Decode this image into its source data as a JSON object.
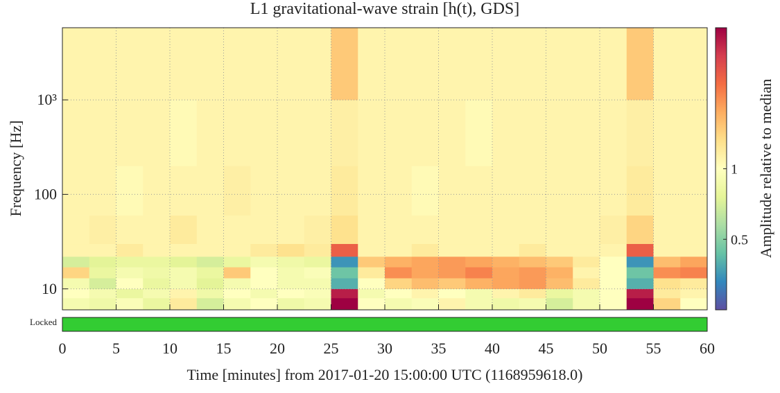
{
  "chart_data": {
    "type": "heatmap",
    "title": "L1 gravitational-wave strain [h(t), GDS]",
    "xlabel": "Time [minutes] from 2017-01-20 15:00:00 UTC (1168959618.0)",
    "ylabel": "Frequency [Hz]",
    "colorbar_label": "Amplitude relative to median",
    "colormap": "Spectral_r",
    "yscale": "log",
    "colorscale": "log",
    "grid": true,
    "xlim": [
      0,
      60
    ],
    "xticks": [
      0,
      5,
      10,
      15,
      20,
      25,
      30,
      35,
      40,
      45,
      50,
      55,
      60
    ],
    "ylim": [
      6,
      5800
    ],
    "yticks": [
      10,
      100,
      {
        "value": 1000,
        "label": "10³"
      }
    ],
    "clim": [
      0.25,
      4
    ],
    "cticks": [
      0.5,
      1
    ],
    "x_edges": [
      0,
      2.5,
      5,
      7.5,
      10,
      12.5,
      15,
      17.5,
      20,
      22.5,
      25,
      27.5,
      30,
      32.5,
      35,
      37.5,
      40,
      42.5,
      45,
      47.5,
      50,
      52.5,
      55,
      57.5,
      60
    ],
    "y_edges": [
      6,
      8,
      10,
      13,
      17,
      22,
      30,
      60,
      200,
      1000,
      5800
    ],
    "z": [
      [
        0.9,
        0.85,
        0.95,
        0.8,
        1.2,
        0.7,
        0.9,
        1.0,
        0.85,
        0.9,
        4,
        1.0,
        0.9,
        0.95,
        1.1,
        0.9,
        0.85,
        0.9,
        0.7,
        0.9,
        1.0,
        4,
        1.4,
        1.0
      ],
      [
        1.0,
        0.9,
        0.8,
        0.9,
        1.1,
        0.85,
        1.0,
        0.9,
        1.0,
        0.95,
        3.5,
        0.9,
        1.0,
        1.1,
        1.0,
        0.9,
        1.1,
        1.2,
        0.8,
        0.9,
        1.0,
        3.5,
        1.2,
        1.1
      ],
      [
        0.9,
        0.7,
        1.0,
        0.8,
        0.9,
        0.75,
        0.9,
        1.0,
        0.9,
        0.9,
        0.4,
        1.0,
        1.4,
        1.6,
        1.5,
        1.7,
        1.8,
        1.9,
        1.6,
        1.2,
        1.0,
        0.4,
        1.3,
        1.2
      ],
      [
        1.4,
        0.8,
        0.9,
        0.85,
        0.9,
        0.8,
        1.5,
        1.0,
        0.9,
        0.95,
        0.45,
        1.2,
        2.0,
        1.8,
        1.9,
        2.1,
        1.8,
        1.9,
        1.7,
        1.1,
        1.0,
        0.45,
        2.0,
        2.1
      ],
      [
        0.7,
        0.75,
        0.8,
        0.8,
        0.75,
        0.7,
        0.8,
        0.9,
        0.85,
        0.8,
        0.35,
        1.5,
        1.7,
        1.8,
        1.9,
        1.8,
        1.7,
        1.6,
        1.5,
        1.2,
        1.0,
        0.35,
        1.6,
        1.8
      ],
      [
        1.1,
        1.1,
        1.2,
        1.1,
        1.1,
        1.1,
        1.1,
        1.2,
        1.3,
        1.2,
        2.5,
        1.1,
        1.1,
        1.2,
        1.1,
        1.1,
        1.1,
        1.2,
        1.1,
        1.1,
        1.1,
        2.5,
        1.1,
        1.1
      ],
      [
        1.1,
        1.15,
        1.1,
        1.1,
        1.2,
        1.1,
        1.1,
        1.1,
        1.1,
        1.15,
        1.3,
        1.1,
        1.1,
        1.1,
        1.1,
        1.1,
        1.1,
        1.1,
        1.1,
        1.1,
        1.15,
        1.4,
        1.1,
        1.1
      ],
      [
        1.1,
        1.1,
        1.05,
        1.1,
        1.1,
        1.1,
        1.15,
        1.1,
        1.1,
        1.1,
        1.2,
        1.1,
        1.1,
        1.05,
        1.1,
        1.1,
        1.1,
        1.1,
        1.1,
        1.1,
        1.1,
        1.2,
        1.1,
        1.1
      ],
      [
        1.1,
        1.1,
        1.1,
        1.1,
        1.05,
        1.1,
        1.1,
        1.1,
        1.1,
        1.1,
        1.15,
        1.1,
        1.1,
        1.1,
        1.1,
        1.05,
        1.1,
        1.1,
        1.1,
        1.1,
        1.1,
        1.15,
        1.1,
        1.1
      ],
      [
        1.1,
        1.1,
        1.1,
        1.1,
        1.1,
        1.1,
        1.1,
        1.1,
        1.1,
        1.1,
        1.5,
        1.1,
        1.1,
        1.1,
        1.1,
        1.1,
        1.1,
        1.1,
        1.1,
        1.1,
        1.1,
        1.5,
        1.1,
        1.1
      ]
    ],
    "state": {
      "label": "Locked",
      "color": "#33cc33",
      "segments": [
        [
          0,
          60
        ]
      ]
    }
  }
}
